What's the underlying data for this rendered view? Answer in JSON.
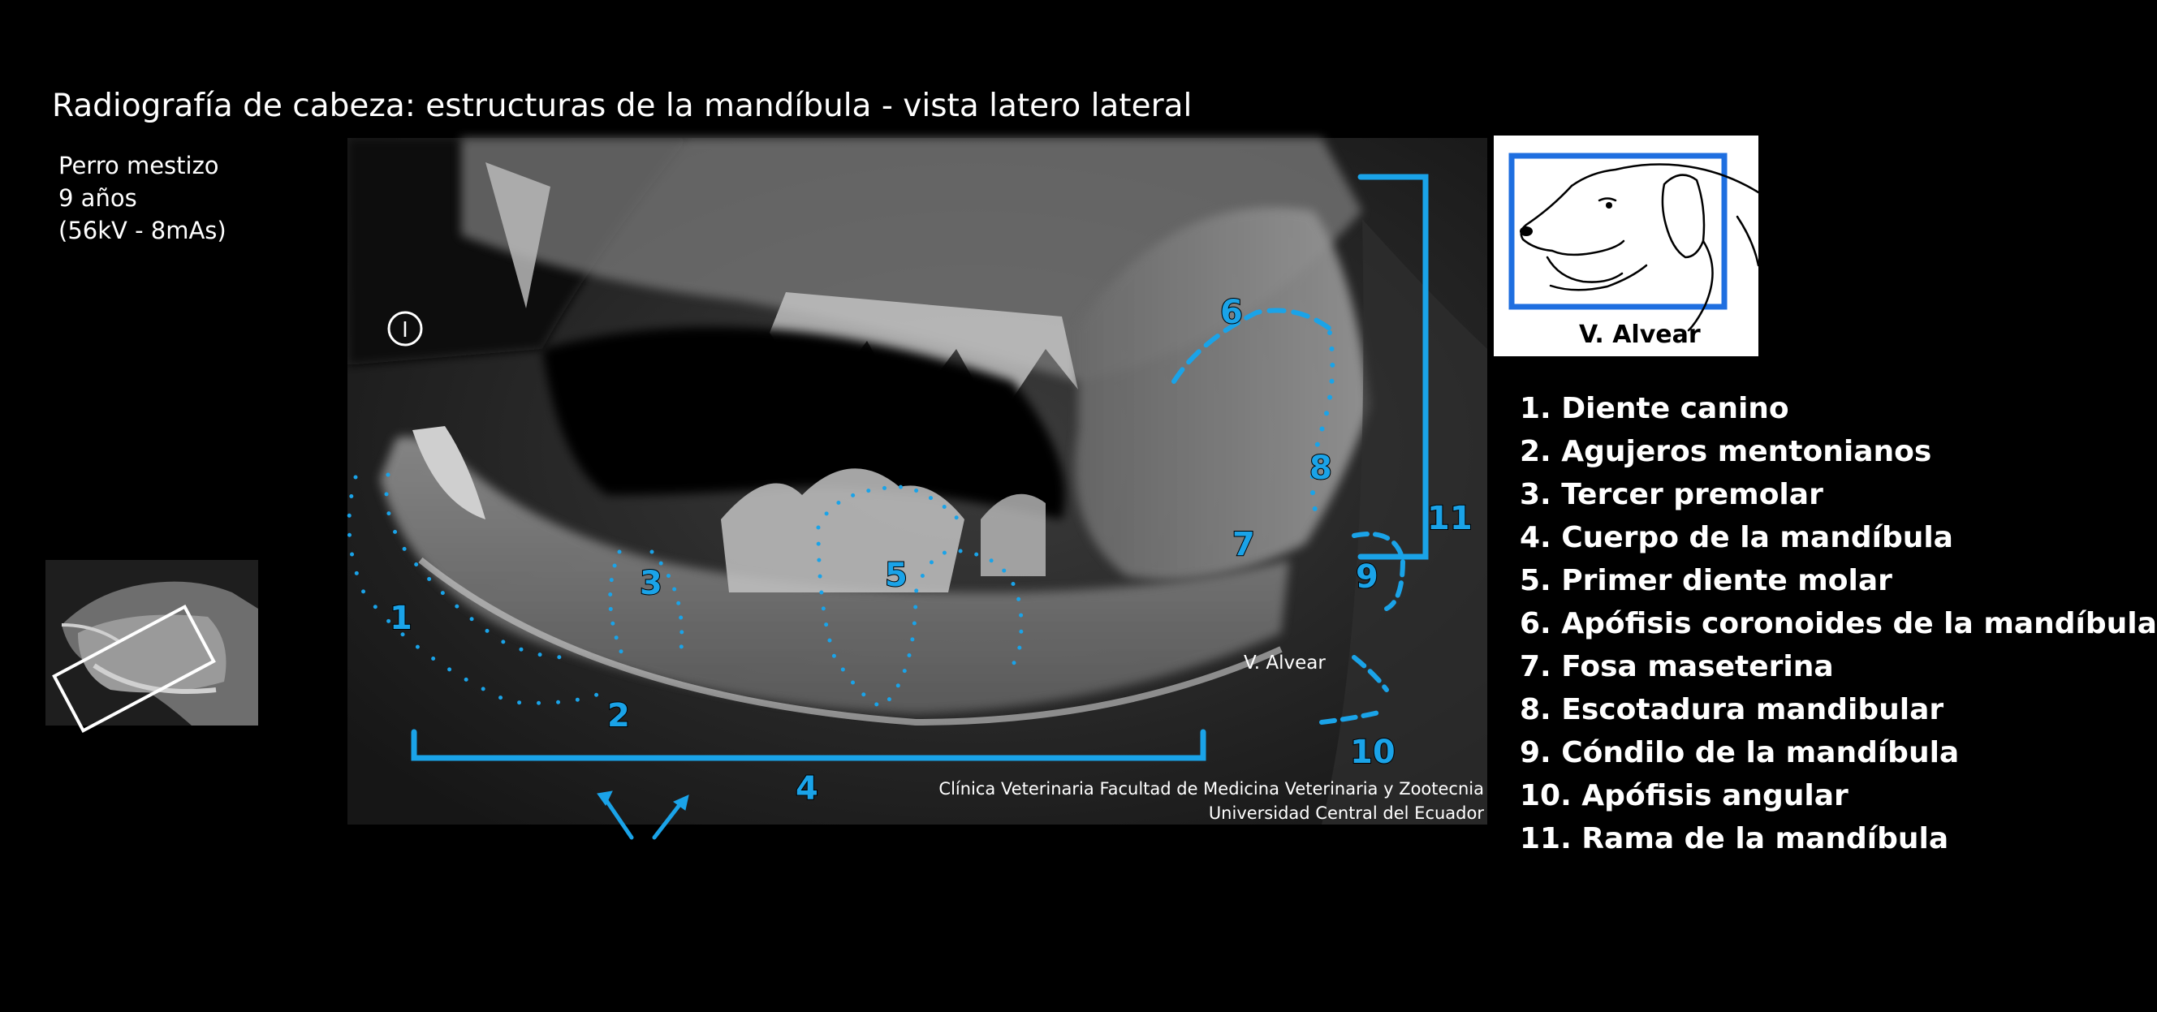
{
  "title": "Radiografía de cabeza: estructuras de la mandíbula - vista latero lateral",
  "patient": {
    "line1": "Perro mestizo",
    "line2": "9 años",
    "line3": "(56kV -  8mAs)"
  },
  "orientation_marker": "I",
  "dog_illustration": {
    "author": "V. Alvear"
  },
  "xray_signature": "V. Alvear",
  "credits": {
    "line1": "Clínica Veterinaria Facultad de Medicina Veterinaria y Zootecnia",
    "line2": "Universidad Central del Ecuador"
  },
  "markers": {
    "m1": "1",
    "m2": "2",
    "m3": "3",
    "m4": "4",
    "m5": "5",
    "m6": "6",
    "m7": "7",
    "m8": "8",
    "m9": "9",
    "m10": "10",
    "m11": "11"
  },
  "legend": [
    "1. Diente canino",
    "2. Agujeros mentonianos",
    "3. Tercer premolar",
    "4. Cuerpo de la mandíbula",
    "5. Primer diente molar",
    "6. Apófisis coronoides de la mandíbula",
    "7. Fosa maseterina",
    "8. Escotadura mandibular",
    "9. Cóndilo de la mandíbula",
    "10. Apófisis angular",
    "11. Rama de la mandíbula"
  ],
  "colors": {
    "background": "#000000",
    "annotation": "#1aa3e8",
    "box_blue": "#1f6fe0"
  }
}
